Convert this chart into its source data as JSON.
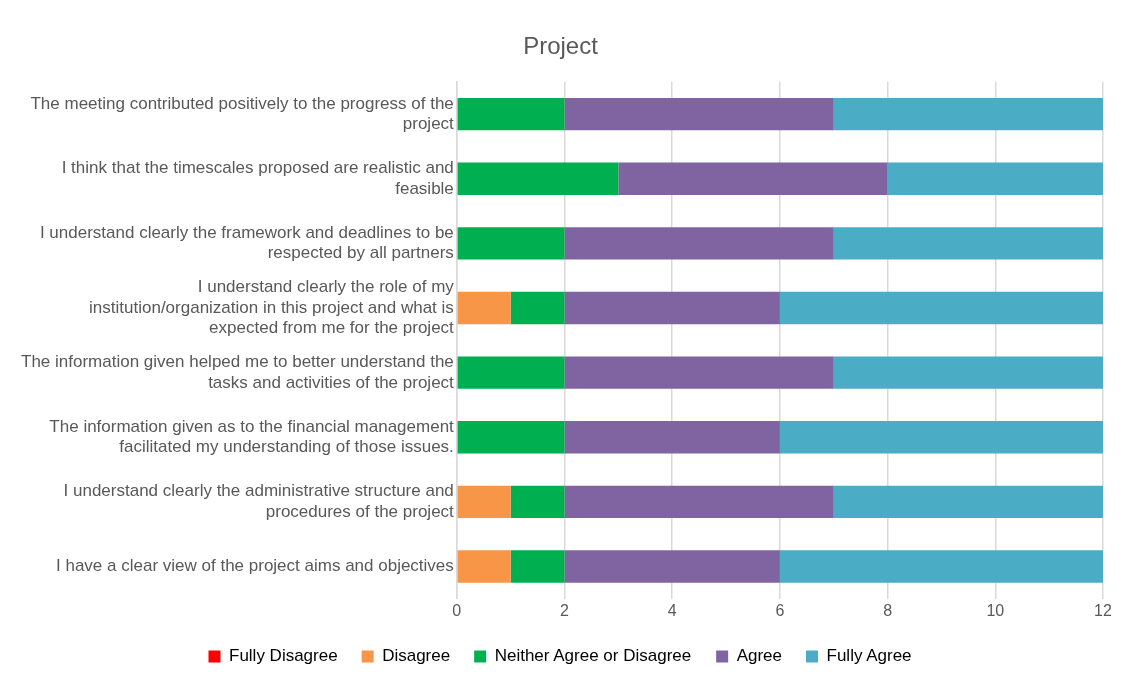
{
  "chart_data": {
    "type": "bar",
    "title": "Project",
    "orientation": "horizontal",
    "stacked": true,
    "categories": [
      "The meeting contributed positively to the progress of the project",
      "I think that the timescales proposed are realistic and feasible",
      "I understand clearly the framework and deadlines to be respected by all partners",
      "I understand clearly the role of my institution/organization in this project and what is expected from me for the project",
      "The information given helped me to better understand the tasks and activities of the project",
      "The information given as to the financial management facilitated my understanding of those issues.",
      "I understand clearly the administrative structure and procedures of the project",
      "I have a clear view of the project aims and objectives"
    ],
    "series": [
      {
        "name": "Fully Disagree",
        "color": "#ff0000",
        "values": [
          0,
          0,
          0,
          0,
          0,
          0,
          0,
          0
        ]
      },
      {
        "name": "Disagree",
        "color": "#f79646",
        "values": [
          0,
          0,
          0,
          1,
          0,
          0,
          1,
          1
        ]
      },
      {
        "name": "Neither Agree or Disagree",
        "color": "#00b050",
        "values": [
          2,
          3,
          2,
          1,
          2,
          2,
          1,
          1
        ]
      },
      {
        "name": "Agree",
        "color": "#8064a2",
        "values": [
          5,
          5,
          5,
          4,
          5,
          4,
          5,
          4
        ]
      },
      {
        "name": "Fully Agree",
        "color": "#4bacc6",
        "values": [
          5,
          4,
          5,
          6,
          5,
          6,
          5,
          6
        ]
      }
    ],
    "xlim": [
      0,
      12
    ],
    "xticks": [
      0,
      2,
      4,
      6,
      8,
      10,
      12
    ],
    "grid": "x",
    "legend": "bottom"
  }
}
